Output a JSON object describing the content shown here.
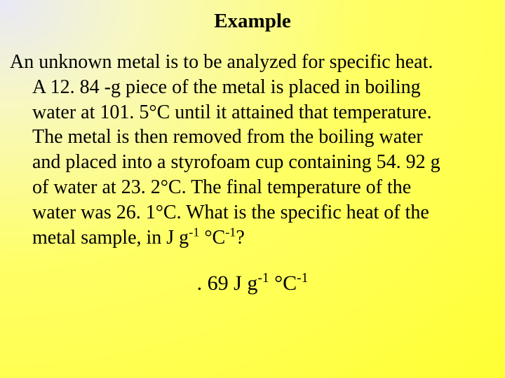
{
  "slide": {
    "title": "Example",
    "problem_line1": "An unknown metal is to be analyzed for specific heat.",
    "problem_line2": "A 12. 84 -g piece of the metal is placed in boiling",
    "problem_line3": "water at 101. 5°C until it attained that temperature.",
    "problem_line4": "The metal is then removed from the boiling water",
    "problem_line5": "and placed into a styrofoam cup containing 54. 92 g",
    "problem_line6": "of water at 23. 2°C.  The final temperature of the",
    "problem_line7": "water was 26. 1°C.  What is the specific heat of the",
    "problem_line8_prefix": "metal sample, in J g",
    "problem_line8_mid": " °C",
    "problem_line8_suffix": "?",
    "sup_neg1": "-1",
    "answer_prefix": ". 69 J g",
    "answer_mid": " °C",
    "background_gradient_start": "#e8e8f8",
    "background_gradient_mid": "#f8f8c0",
    "background_gradient_end": "#ffff33",
    "text_color": "#000000",
    "title_fontsize": 29,
    "body_fontsize": 28,
    "answer_fontsize": 30,
    "font_family": "Times New Roman"
  }
}
